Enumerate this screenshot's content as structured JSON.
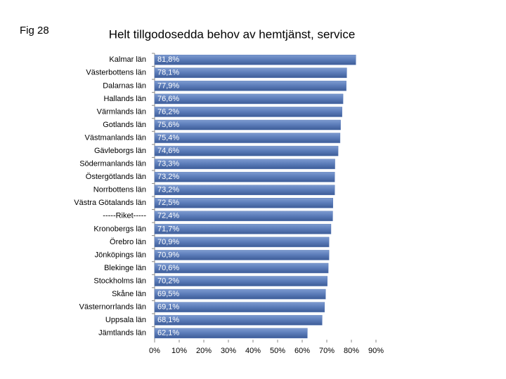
{
  "chart_data": {
    "type": "barh",
    "title": "Helt tillgodosedda behov av hemtjänst, service",
    "annotation": "Fig 28",
    "categories": [
      "Kalmar län",
      "Västerbottens län",
      "Dalarnas län",
      "Hallands län",
      "Värmlands län",
      "Gotlands län",
      "Västmanlands län",
      "Gävleborgs län",
      "Södermanlands län",
      "Östergötlands län",
      "Norrbottens län",
      "Västra Götalands län",
      "-----Riket-----",
      "Kronobergs län",
      "Örebro län",
      "Jönköpings län",
      "Blekinge län",
      "Stockholms län",
      "Skåne län",
      "Västernorrlands län",
      "Uppsala län",
      "Jämtlands län"
    ],
    "values": [
      81.8,
      78.1,
      77.9,
      76.6,
      76.2,
      75.6,
      75.4,
      74.6,
      73.3,
      73.2,
      73.2,
      72.5,
      72.4,
      71.7,
      70.9,
      70.9,
      70.6,
      70.2,
      69.5,
      69.1,
      68.1,
      62.1
    ],
    "value_labels": [
      "81,8%",
      "78,1%",
      "77,9%",
      "76,6%",
      "76,2%",
      "75,6%",
      "75,4%",
      "74,6%",
      "73,3%",
      "73,2%",
      "73,2%",
      "72,5%",
      "72,4%",
      "71,7%",
      "70,9%",
      "70,9%",
      "70,6%",
      "70,2%",
      "69,5%",
      "69,1%",
      "68,1%",
      "62,1%"
    ],
    "color": "#5a7bb8",
    "xlim": [
      0,
      90
    ],
    "xticks": [
      {
        "value": 0,
        "label": "0%"
      },
      {
        "value": 10,
        "label": "10%"
      },
      {
        "value": 20,
        "label": "20%"
      },
      {
        "value": 30,
        "label": "30%"
      },
      {
        "value": 40,
        "label": "40%"
      },
      {
        "value": 50,
        "label": "50%"
      },
      {
        "value": 60,
        "label": "60%"
      },
      {
        "value": 70,
        "label": "70%"
      },
      {
        "value": 80,
        "label": "80%"
      },
      {
        "value": 90,
        "label": "90%"
      }
    ]
  }
}
